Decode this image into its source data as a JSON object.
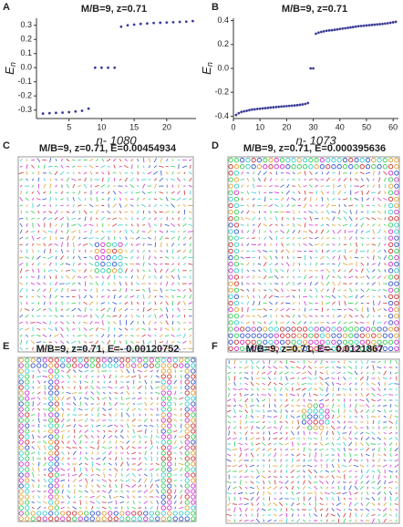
{
  "chart_data": [
    {
      "type": "scatter",
      "panel": "A",
      "title": "M/B=9, z=0.71",
      "xlabel": "n- 1080",
      "ylabel": [
        "E",
        "n"
      ],
      "color": "#3b3b99",
      "x": [
        1,
        2,
        3,
        4,
        5,
        6,
        7,
        8,
        9,
        10,
        11,
        12,
        13,
        14,
        15,
        16,
        17,
        18,
        19,
        20,
        21,
        22,
        23,
        24
      ],
      "values": [
        -0.325,
        -0.322,
        -0.32,
        -0.318,
        -0.315,
        -0.31,
        -0.305,
        -0.29,
        0,
        0,
        0,
        0,
        0.29,
        0.3,
        0.305,
        0.31,
        0.313,
        0.316,
        0.318,
        0.32,
        0.322,
        0.324,
        0.326,
        0.33
      ],
      "xlim": [
        0,
        24.5
      ],
      "ylim": [
        -0.36,
        0.35
      ],
      "xticks": [
        5,
        10,
        15,
        20
      ],
      "yticks": [
        -0.3,
        -0.2,
        -0.1,
        {
          "value": 0,
          "label": "0.0"
        },
        0.1,
        0.2,
        0.3
      ]
    },
    {
      "type": "scatter",
      "panel": "B",
      "title": "M/B=9, z=0.71",
      "xlabel": "n- 1073",
      "ylabel": [
        "E",
        "n"
      ],
      "color": "#3b3b99",
      "x": [
        1,
        2,
        3,
        4,
        5,
        6,
        7,
        8,
        9,
        10,
        11,
        12,
        13,
        14,
        15,
        16,
        17,
        18,
        19,
        20,
        21,
        22,
        23,
        24,
        25,
        26,
        27,
        28,
        29,
        30,
        31,
        32,
        33,
        34,
        35,
        36,
        37,
        38,
        39,
        40,
        41,
        42,
        43,
        44,
        45,
        46,
        47,
        48,
        49,
        50,
        51,
        52,
        53,
        54,
        55,
        56,
        57,
        58,
        59,
        60,
        61
      ],
      "values": [
        -0.39,
        -0.375,
        -0.365,
        -0.36,
        -0.355,
        -0.35,
        -0.345,
        -0.343,
        -0.34,
        -0.338,
        -0.335,
        -0.333,
        -0.33,
        -0.328,
        -0.326,
        -0.324,
        -0.322,
        -0.32,
        -0.318,
        -0.316,
        -0.314,
        -0.312,
        -0.31,
        -0.308,
        -0.305,
        -0.302,
        -0.298,
        -0.29,
        0,
        0,
        0.29,
        0.3,
        0.305,
        0.31,
        0.315,
        0.318,
        0.32,
        0.323,
        0.326,
        0.33,
        0.333,
        0.336,
        0.34,
        0.343,
        0.346,
        0.35,
        0.353,
        0.355,
        0.357,
        0.36,
        0.362,
        0.364,
        0.366,
        0.368,
        0.37,
        0.372,
        0.375,
        0.378,
        0.382,
        0.386,
        0.39
      ],
      "xlim": [
        0,
        62
      ],
      "ylim": [
        -0.42,
        0.42
      ],
      "xticks": [
        0,
        10,
        20,
        30,
        40,
        50,
        60
      ],
      "yticks": [
        -0.4,
        -0.2,
        {
          "value": 0,
          "label": "0.0"
        },
        0.2,
        0.4
      ]
    },
    {
      "type": "field",
      "panel": "C",
      "title": "M/B=9, z=0.71, E=0.00454934"
    },
    {
      "type": "field",
      "panel": "D",
      "title": "M/B=9, z=0.71, E=0.000395636"
    },
    {
      "type": "field",
      "panel": "E",
      "title": "M/B=9, z=0.71, E=- 0.00120752"
    },
    {
      "type": "field",
      "panel": "F",
      "title": "M/B=9, z=0.71, E=- 0.0121867"
    }
  ]
}
